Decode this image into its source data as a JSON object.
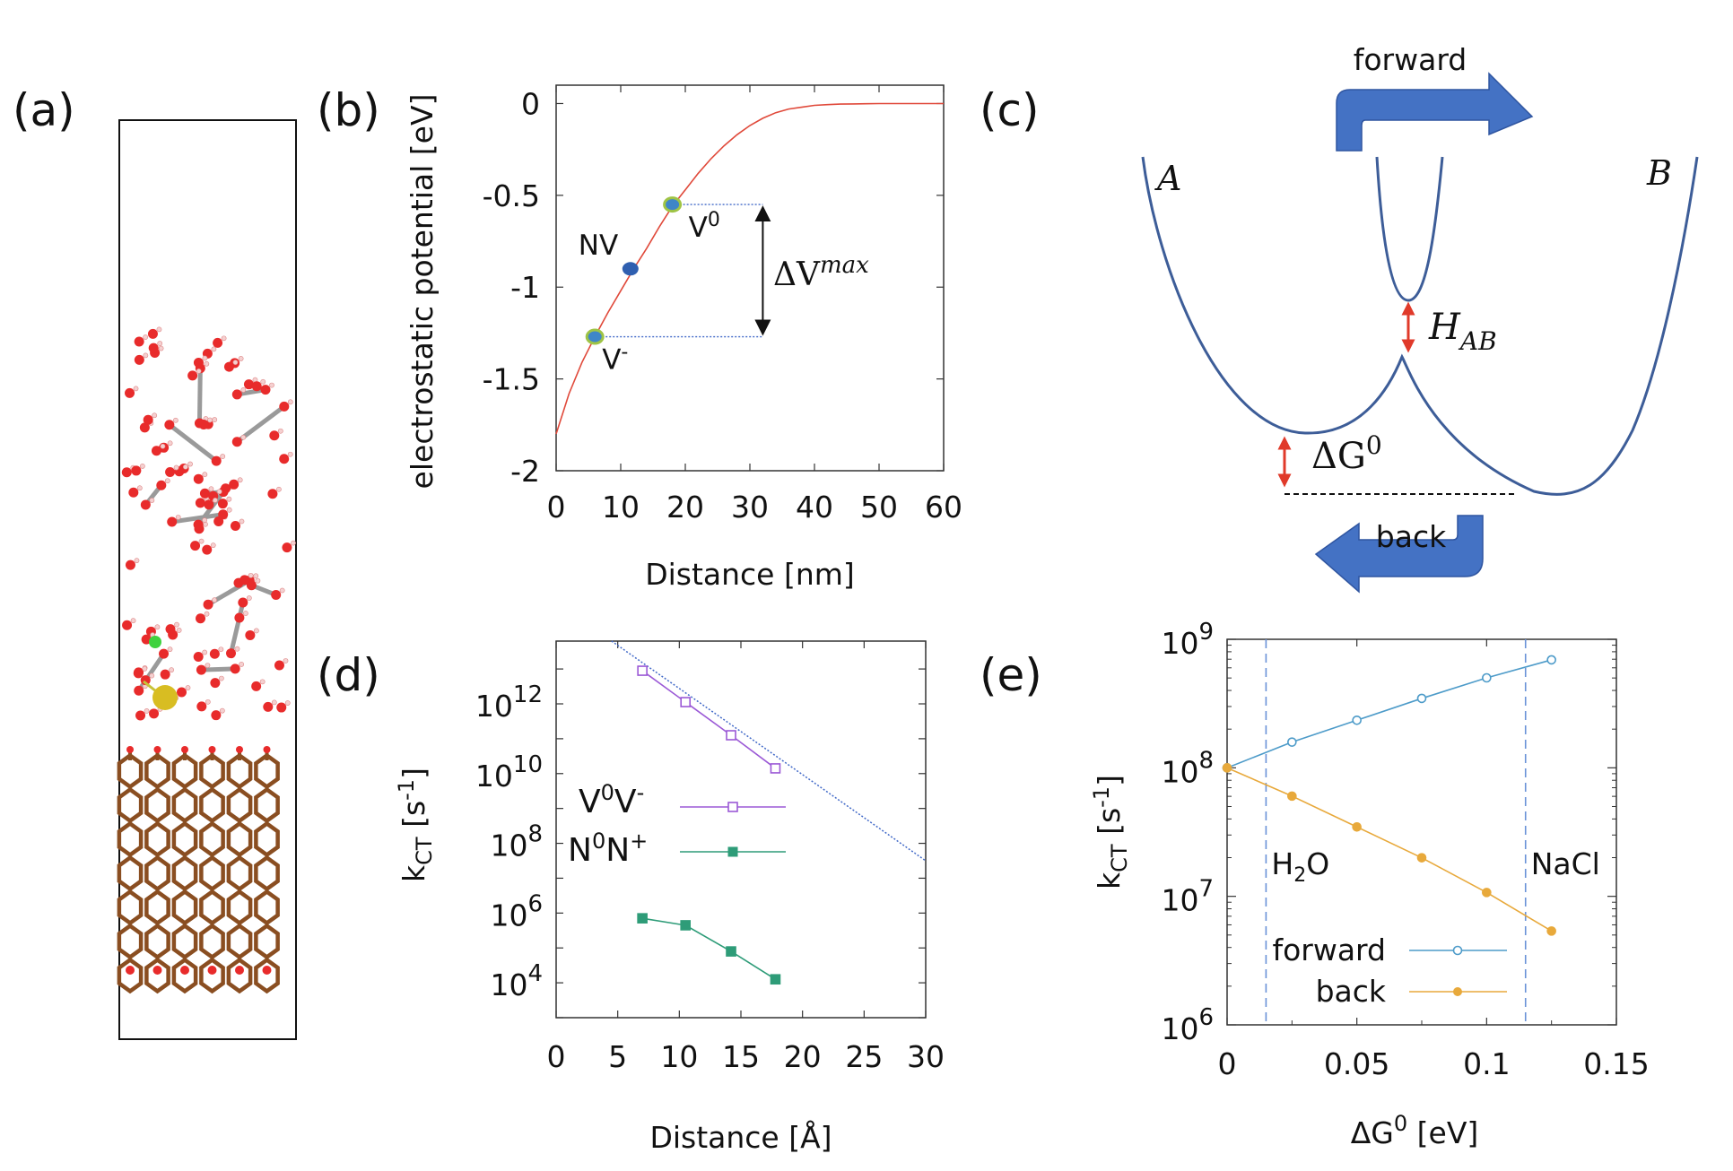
{
  "panel_labels": {
    "a": "(a)",
    "b": "(b)",
    "c": "(c)",
    "d": "(d)",
    "e": "(e)"
  },
  "colors": {
    "line_red": "#e0493a",
    "v_purple": "#9b59d6",
    "n_green": "#2e9c78",
    "fwd_blue": "#4d9bc9",
    "back_orange": "#e8a93b",
    "well_blue": "#3d5d98",
    "arrow_blue": "#4472c4",
    "vline_blue": "#6a92d8",
    "diag_dots": "#4169c8",
    "oxygen": "#e82b2b",
    "hydrogen": "#f5d0d0",
    "carbon": "#8a4e21",
    "chloride": "#3fd23f",
    "sodium": "#d8bd22"
  },
  "chart_data": [
    {
      "id": "b",
      "type": "line",
      "xlabel": "Distance [nm]",
      "ylabel": "electrostatic potential [eV]",
      "xlim": [
        0,
        60
      ],
      "ylim": [
        -2,
        0.1
      ],
      "xticks": [
        0,
        10,
        20,
        30,
        40,
        50,
        60
      ],
      "yticks": [
        0,
        -0.5,
        -1,
        -1.5,
        -2
      ],
      "ytick_labels": [
        "0",
        "-0.5",
        "-1",
        "-1.5",
        "-2"
      ],
      "series": [
        {
          "name": "potential",
          "x": [
            0,
            2,
            4,
            6,
            8,
            10,
            12,
            14,
            16,
            18,
            20,
            22,
            24,
            26,
            28,
            30,
            32,
            34,
            36,
            38,
            40,
            42,
            44,
            46,
            48,
            50,
            52,
            55,
            58,
            60
          ],
          "y": [
            -1.8,
            -1.58,
            -1.41,
            -1.27,
            -1.14,
            -1.02,
            -0.9,
            -0.79,
            -0.67,
            -0.56,
            -0.47,
            -0.38,
            -0.3,
            -0.23,
            -0.17,
            -0.12,
            -0.08,
            -0.05,
            -0.03,
            -0.02,
            -0.01,
            -0.006,
            -0.003,
            -0.002,
            -0.001,
            0,
            0,
            0,
            0,
            0
          ]
        }
      ],
      "points": [
        {
          "label": "NV",
          "x": 11.5,
          "y": -0.9
        },
        {
          "label": "V",
          "sup": "0",
          "x": 18,
          "y": -0.55
        },
        {
          "label": "V",
          "sup": "-",
          "x": 6,
          "y": -1.27
        }
      ],
      "annotation": {
        "delta": "ΔV",
        "sup": "max",
        "x": 32,
        "y_top": -0.55,
        "y_bottom": -1.27
      }
    },
    {
      "id": "c",
      "type": "diagram",
      "well_labels": {
        "A": "A",
        "B": "B"
      },
      "coupling": {
        "base": "H",
        "sub": "AB"
      },
      "driving_force": {
        "base": "ΔG",
        "sup": "0"
      },
      "arrows": {
        "forward": "forward",
        "back": "back"
      }
    },
    {
      "id": "d",
      "type": "scatter",
      "log_y": true,
      "xlabel": "Distance [Å]",
      "ylabel": "k",
      "ylabel_sub": "CT",
      "ylabel_unit": " [s",
      "ylabel_unit_sup": "-1",
      "ylabel_close": "]",
      "xlim": [
        0,
        30
      ],
      "ylim_log10": [
        3.0,
        13.8
      ],
      "xticks": [
        0,
        5,
        10,
        15,
        20,
        25,
        30
      ],
      "yticks_exp": [
        4,
        6,
        8,
        10,
        12
      ],
      "series": [
        {
          "name": "V0V-",
          "label_a": "V",
          "sup_a": "0",
          "label_b": "V",
          "sup_b": "-",
          "marker": "open-square",
          "x": [
            7,
            10.5,
            14.2,
            17.8
          ],
          "log10_y": [
            12.95,
            12.05,
            11.1,
            10.15
          ]
        },
        {
          "name": "N0N+",
          "label_a": "N",
          "sup_a": "0",
          "label_b": "N",
          "sup_b": "+",
          "marker": "filled-square",
          "x": [
            7,
            10.5,
            14.2,
            17.8
          ],
          "log10_y": [
            5.85,
            5.65,
            4.9,
            4.1
          ]
        }
      ],
      "fit_line": {
        "x": [
          4.5,
          30
        ],
        "log10_y": [
          13.8,
          7.5
        ]
      }
    },
    {
      "id": "e",
      "type": "line",
      "log_y": true,
      "xlabel": "ΔG",
      "xlabel_sup": "0",
      "xlabel_unit": " [eV]",
      "ylabel": "k",
      "ylabel_sub": "CT",
      "ylabel_unit": " [s",
      "ylabel_unit_sup": "-1",
      "ylabel_close": "]",
      "xlim": [
        0,
        0.15
      ],
      "ylim_log10": [
        6,
        9
      ],
      "xticks": [
        0,
        0.05,
        0.1,
        0.15
      ],
      "xtick_labels": [
        "0",
        "0.05",
        "0.1",
        "0.15"
      ],
      "yticks_exp": [
        6,
        7,
        8,
        9
      ],
      "vlines": [
        {
          "x": 0.015,
          "label": "H",
          "sub": "2",
          "tail": "O"
        },
        {
          "x": 0.115,
          "label": "NaCl"
        }
      ],
      "series": [
        {
          "name": "forward",
          "marker": "open-circle",
          "x": [
            0,
            0.025,
            0.05,
            0.075,
            0.1,
            0.125
          ],
          "log10_y": [
            8.0,
            8.2,
            8.37,
            8.54,
            8.7,
            8.84
          ]
        },
        {
          "name": "back",
          "marker": "filled-circle",
          "x": [
            0,
            0.025,
            0.05,
            0.075,
            0.1,
            0.125
          ],
          "log10_y": [
            8.0,
            7.78,
            7.54,
            7.3,
            7.03,
            6.73
          ]
        }
      ]
    }
  ]
}
